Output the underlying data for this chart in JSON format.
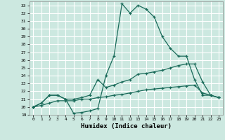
{
  "title": "",
  "xlabel": "Humidex (Indice chaleur)",
  "bg_color": "#cce8e0",
  "grid_color": "#ffffff",
  "line_color": "#1a6b5a",
  "xlim": [
    -0.5,
    23.5
  ],
  "ylim": [
    19,
    33.5
  ],
  "xticks": [
    0,
    1,
    2,
    3,
    4,
    5,
    6,
    7,
    8,
    9,
    10,
    11,
    12,
    13,
    14,
    15,
    16,
    17,
    18,
    19,
    20,
    21,
    22,
    23
  ],
  "yticks": [
    19,
    20,
    21,
    22,
    23,
    24,
    25,
    26,
    27,
    28,
    29,
    30,
    31,
    32,
    33
  ],
  "series1_x": [
    0,
    1,
    2,
    3,
    4,
    5,
    6,
    7,
    8,
    9,
    10,
    11,
    12,
    13,
    14,
    15,
    16,
    17,
    18,
    19,
    20,
    21,
    22,
    23
  ],
  "series1_y": [
    20.0,
    20.5,
    21.5,
    21.5,
    21.0,
    19.2,
    19.3,
    19.5,
    19.8,
    24.0,
    26.5,
    33.2,
    32.0,
    33.0,
    32.5,
    31.5,
    29.0,
    27.5,
    26.5,
    26.5,
    23.5,
    21.5,
    21.5,
    21.2
  ],
  "series2_x": [
    0,
    1,
    2,
    3,
    4,
    5,
    6,
    7,
    8,
    9,
    10,
    11,
    12,
    13,
    14,
    15,
    16,
    17,
    18,
    19,
    20,
    21,
    22,
    23
  ],
  "series2_y": [
    20.0,
    20.5,
    21.5,
    21.5,
    21.0,
    21.0,
    21.2,
    21.5,
    23.5,
    22.5,
    22.8,
    23.2,
    23.5,
    24.2,
    24.3,
    24.5,
    24.7,
    25.0,
    25.3,
    25.5,
    25.5,
    23.2,
    21.5,
    21.2
  ],
  "series3_x": [
    0,
    1,
    2,
    3,
    4,
    5,
    6,
    7,
    8,
    9,
    10,
    11,
    12,
    13,
    14,
    15,
    16,
    17,
    18,
    19,
    20,
    21,
    22,
    23
  ],
  "series3_y": [
    20.0,
    20.2,
    20.5,
    20.8,
    20.8,
    20.8,
    21.0,
    21.0,
    21.2,
    21.3,
    21.5,
    21.6,
    21.8,
    22.0,
    22.2,
    22.3,
    22.4,
    22.5,
    22.6,
    22.7,
    22.8,
    21.8,
    21.5,
    21.2
  ]
}
